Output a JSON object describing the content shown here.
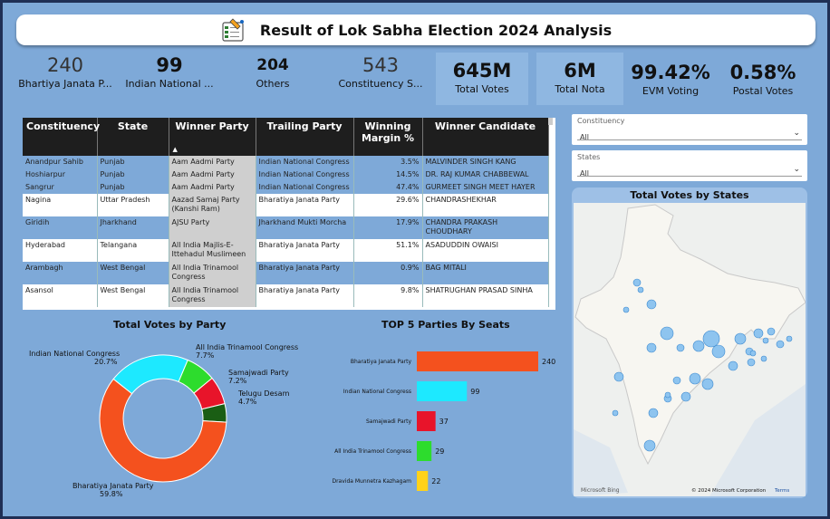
{
  "title": "Result of Lok Sabha Election 2024 Analysis",
  "colors": {
    "bjp": "#f4511e",
    "inc": "#1de9ff",
    "sp": "#e8142a",
    "aitc": "#2ddc2d",
    "dmk": "#ffd21a",
    "tdp": "#1a5e14"
  },
  "kpis": [
    {
      "value": "240",
      "label": "Bhartiya Janata P..."
    },
    {
      "value": "99",
      "label": "Indian National ..."
    },
    {
      "value": "204",
      "label": "Others"
    },
    {
      "value": "543",
      "label": "Constituency S..."
    },
    {
      "value": "645M",
      "label": "Total Votes"
    },
    {
      "value": "6M",
      "label": "Total Nota"
    },
    {
      "value": "99.42%",
      "label": "EVM Voting"
    },
    {
      "value": "0.58%",
      "label": "Postal Votes"
    }
  ],
  "table": {
    "headers": [
      "Constituency",
      "State",
      "Winner Party",
      "Trailing Party",
      "Winning Margin %",
      "Winner Candidate"
    ],
    "rows": [
      [
        "Anandpur Sahib",
        "Punjab",
        "Aam Aadmi Party",
        "Indian National Congress",
        "3.5%",
        "MALVINDER SINGH KANG"
      ],
      [
        "Hoshiarpur",
        "Punjab",
        "Aam Aadmi Party",
        "Indian National Congress",
        "14.5%",
        "DR. RAJ KUMAR CHABBEWAL"
      ],
      [
        "Sangrur",
        "Punjab",
        "Aam Aadmi Party",
        "Indian National Congress",
        "47.4%",
        "GURMEET SINGH MEET HAYER"
      ],
      [
        "Nagina",
        "Uttar Pradesh",
        "Aazad Samaj Party (Kanshi Ram)",
        "Bharatiya Janata Party",
        "29.6%",
        "CHANDRASHEKHAR"
      ],
      [
        "Giridih",
        "Jharkhand",
        "AJSU Party",
        "Jharkhand Mukti Morcha",
        "17.9%",
        "CHANDRA PRAKASH CHOUDHARY"
      ],
      [
        "Hyderabad",
        "Telangana",
        "All India Majlis-E-Ittehadul Muslimeen",
        "Bharatiya Janata Party",
        "51.1%",
        "ASADUDDIN OWAISI"
      ],
      [
        "Arambagh",
        "West Bengal",
        "All India Trinamool Congress",
        "Bharatiya Janata Party",
        "0.9%",
        "BAG MITALI"
      ],
      [
        "Asansol",
        "West Bengal",
        "All India Trinamool Congress",
        "Bharatiya Janata Party",
        "9.8%",
        "SHATRUGHAN PRASAD SINHA"
      ]
    ]
  },
  "slicers": [
    {
      "label": "Constituency",
      "value": "All"
    },
    {
      "label": "States",
      "value": "All"
    }
  ],
  "map": {
    "title": "Total Votes by States",
    "logo_text": "Microsoft Bing",
    "copyright": "© 2024 Microsoft Corporation",
    "terms": "Terms"
  },
  "donut": {
    "title": "Total Votes by Party",
    "slices": [
      {
        "name": "Bharatiya Janata Party",
        "pct": "59.8%",
        "value": 59.8,
        "color": "#f4511e"
      },
      {
        "name": "Indian National Congress",
        "pct": "20.7%",
        "value": 20.7,
        "color": "#1de9ff"
      },
      {
        "name": "All India Trinamool Congress",
        "pct": "7.7%",
        "value": 7.7,
        "color": "#2ddc2d"
      },
      {
        "name": "Samajwadi Party",
        "pct": "7.2%",
        "value": 7.2,
        "color": "#e8142a"
      },
      {
        "name": "Telugu Desam",
        "pct": "4.7%",
        "value": 4.7,
        "color": "#1a5e14"
      }
    ]
  },
  "chart_data": {
    "type": "bar",
    "title": "TOP 5 Parties By Seats",
    "categories": [
      "Bharatiya Janata Party",
      "Indian National Congress",
      "Samajwadi Party",
      "All India Trinamool Congress",
      "Dravida Munnetra Kazhagam"
    ],
    "values": [
      240,
      99,
      37,
      29,
      22
    ],
    "colors": [
      "#f4511e",
      "#1de9ff",
      "#e8142a",
      "#2ddc2d",
      "#ffd21a"
    ],
    "orientation": "horizontal",
    "xlim": [
      0,
      240
    ]
  }
}
